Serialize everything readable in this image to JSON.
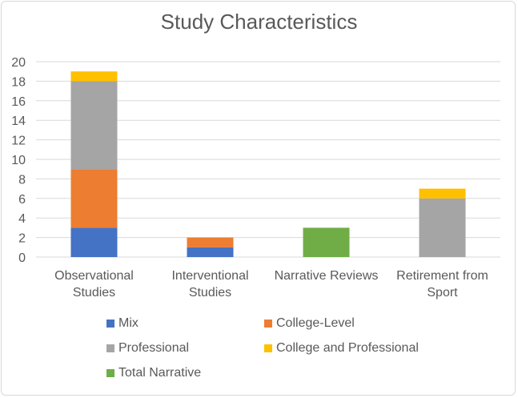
{
  "chart_data": {
    "type": "bar",
    "stacked": true,
    "title": "Study Characteristics",
    "xlabel": "",
    "ylabel": "",
    "ylim": [
      0,
      20
    ],
    "yticks": [
      0,
      2,
      4,
      6,
      8,
      10,
      12,
      14,
      16,
      18,
      20
    ],
    "grid": true,
    "legend_position": "bottom",
    "categories": [
      [
        "Observational",
        "Studies"
      ],
      [
        "Interventional",
        "Studies"
      ],
      [
        "Narrative Reviews"
      ],
      [
        "Retirement from",
        "Sport"
      ]
    ],
    "series": [
      {
        "name": "Mix",
        "color": "#4472c4",
        "values": [
          3,
          1,
          0,
          0
        ]
      },
      {
        "name": "College-Level",
        "color": "#ed7d31",
        "values": [
          6,
          1,
          0,
          0
        ]
      },
      {
        "name": "Professional",
        "color": "#a5a5a5",
        "values": [
          9,
          0,
          0,
          6
        ]
      },
      {
        "name": "College and Professional",
        "color": "#ffc000",
        "values": [
          1,
          0,
          0,
          1
        ]
      },
      {
        "name": "Total Narrative",
        "color": "#70ad47",
        "values": [
          0,
          0,
          3,
          0
        ]
      }
    ]
  }
}
